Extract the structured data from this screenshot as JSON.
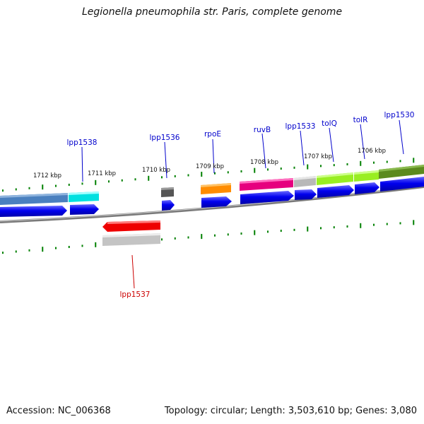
{
  "header": {
    "title": "Legionella pneumophila str. Paris, complete genome"
  },
  "footer": {
    "accession": "Accession: NC_006368",
    "summary": "Topology: circular; Length: 3,503,610 bp; Genes: 3,080"
  },
  "colors": {
    "backbone": "#808080",
    "tick": "#008000",
    "label_forward": "#0000cc",
    "label_reverse": "#cc0000",
    "cds_arrow": "#0000ee"
  },
  "scale_labels": [
    "1712 kbp",
    "1711 kbp",
    "1710 kbp",
    "1709 kbp",
    "1708 kbp",
    "1707 kbp",
    "1706 kbp"
  ],
  "gene_labels": {
    "lpp1538": "lpp1538",
    "lpp1536": "lpp1536",
    "rpoE": "rpoE",
    "ruvB": "ruvB",
    "lpp1533": "lpp1533",
    "tolQ": "tolQ",
    "tolR": "tolR",
    "lpp1530": "lpp1530",
    "lpp1537": "lpp1537"
  },
  "features": [
    {
      "name": "lpp1538",
      "strand": "forward",
      "color": "#00e5e5"
    },
    {
      "name": "lpp1536",
      "strand": "forward",
      "color": "#555555"
    },
    {
      "name": "rpoE",
      "strand": "forward",
      "color": "#ff8c00"
    },
    {
      "name": "ruvB",
      "strand": "forward",
      "color": "#e6007e"
    },
    {
      "name": "lpp1533",
      "strand": "forward",
      "color": "#bbbbbb"
    },
    {
      "name": "tolQ",
      "strand": "forward",
      "color": "#99ee22"
    },
    {
      "name": "tolR",
      "strand": "forward",
      "color": "#99ee22"
    },
    {
      "name": "lpp1530",
      "strand": "forward",
      "color": "#5c8a1e"
    },
    {
      "name": "lpp1537",
      "strand": "reverse",
      "color": "#ee0000"
    }
  ]
}
